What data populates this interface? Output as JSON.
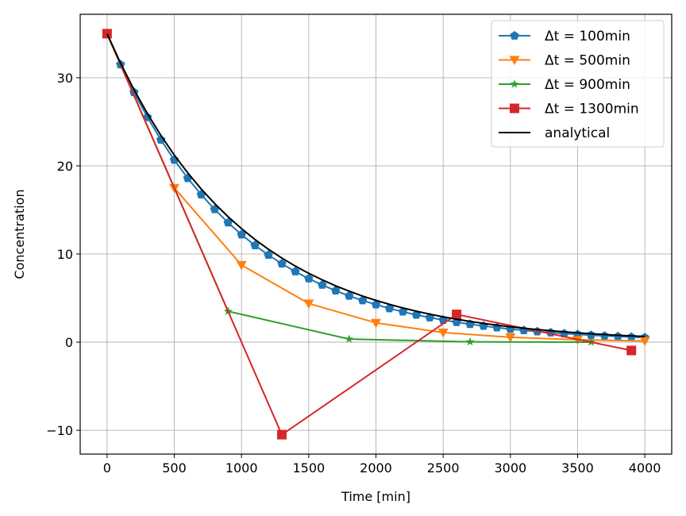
{
  "chart_data": {
    "type": "line",
    "title": "",
    "xlabel": "Time [min]",
    "ylabel": "Concentration",
    "xlim": [
      -200,
      4200
    ],
    "ylim": [
      -12.7,
      37.2
    ],
    "xticks": [
      0,
      500,
      1000,
      1500,
      2000,
      2500,
      3000,
      3500,
      4000
    ],
    "yticks": [
      -10,
      0,
      10,
      20,
      30
    ],
    "ytick_labels": [
      "−10",
      "0",
      "10",
      "20",
      "30"
    ],
    "grid": true,
    "legend_position": "top-right",
    "series": [
      {
        "name": "Δt = 100min",
        "color": "#1f77b4",
        "marker": "pentagon",
        "x": [
          0,
          100,
          200,
          300,
          400,
          500,
          600,
          700,
          800,
          900,
          1000,
          1100,
          1200,
          1300,
          1400,
          1500,
          1600,
          1700,
          1800,
          1900,
          2000,
          2100,
          2200,
          2300,
          2400,
          2500,
          2600,
          2700,
          2800,
          2900,
          3000,
          3100,
          3200,
          3300,
          3400,
          3500,
          3600,
          3700,
          3800,
          3900,
          4000
        ],
        "y": [
          35,
          31.5,
          28.35,
          25.52,
          22.96,
          20.67,
          18.6,
          16.74,
          15.07,
          13.56,
          12.2,
          10.98,
          9.89,
          8.9,
          8.01,
          7.21,
          6.49,
          5.84,
          5.25,
          4.73,
          4.26,
          3.83,
          3.45,
          3.1,
          2.79,
          2.51,
          2.26,
          2.04,
          1.83,
          1.65,
          1.48,
          1.34,
          1.2,
          1.08,
          0.97,
          0.88,
          0.79,
          0.71,
          0.64,
          0.58,
          0.52
        ]
      },
      {
        "name": "Δt = 500min",
        "color": "#ff7f0e",
        "marker": "triangle-down",
        "x": [
          0,
          500,
          1000,
          1500,
          2000,
          2500,
          3000,
          3500,
          4000
        ],
        "y": [
          35,
          17.5,
          8.75,
          4.38,
          2.19,
          1.09,
          0.55,
          0.27,
          0.14
        ]
      },
      {
        "name": "Δt = 900min",
        "color": "#2ca02c",
        "marker": "star",
        "x": [
          0,
          900,
          1800,
          2700,
          3600
        ],
        "y": [
          35,
          3.5,
          0.35,
          0.035,
          0.0035
        ]
      },
      {
        "name": "Δt = 1300min",
        "color": "#d62728",
        "marker": "square",
        "x": [
          0,
          1300,
          2600,
          3900
        ],
        "y": [
          35,
          -10.5,
          3.15,
          -0.945
        ]
      },
      {
        "name": "analytical",
        "color": "#000000",
        "marker": "none",
        "x": [
          0,
          100,
          200,
          300,
          400,
          500,
          600,
          700,
          800,
          900,
          1000,
          1100,
          1200,
          1300,
          1400,
          1500,
          1600,
          1700,
          1800,
          1900,
          2000,
          2100,
          2200,
          2300,
          2400,
          2500,
          2600,
          2700,
          2800,
          2900,
          3000,
          3100,
          3200,
          3300,
          3400,
          3500,
          3600,
          3700,
          3800,
          3900,
          4000
        ],
        "y": [
          35,
          31.67,
          28.66,
          25.93,
          23.46,
          21.23,
          19.21,
          17.38,
          15.73,
          14.23,
          12.88,
          11.65,
          10.54,
          9.54,
          8.63,
          7.81,
          7.07,
          6.39,
          5.79,
          5.23,
          4.74,
          4.29,
          3.88,
          3.51,
          3.18,
          2.87,
          2.6,
          2.35,
          2.13,
          1.93,
          1.74,
          1.58,
          1.43,
          1.29,
          1.17,
          1.06,
          0.96,
          0.87,
          0.78,
          0.71,
          0.64
        ]
      }
    ]
  }
}
